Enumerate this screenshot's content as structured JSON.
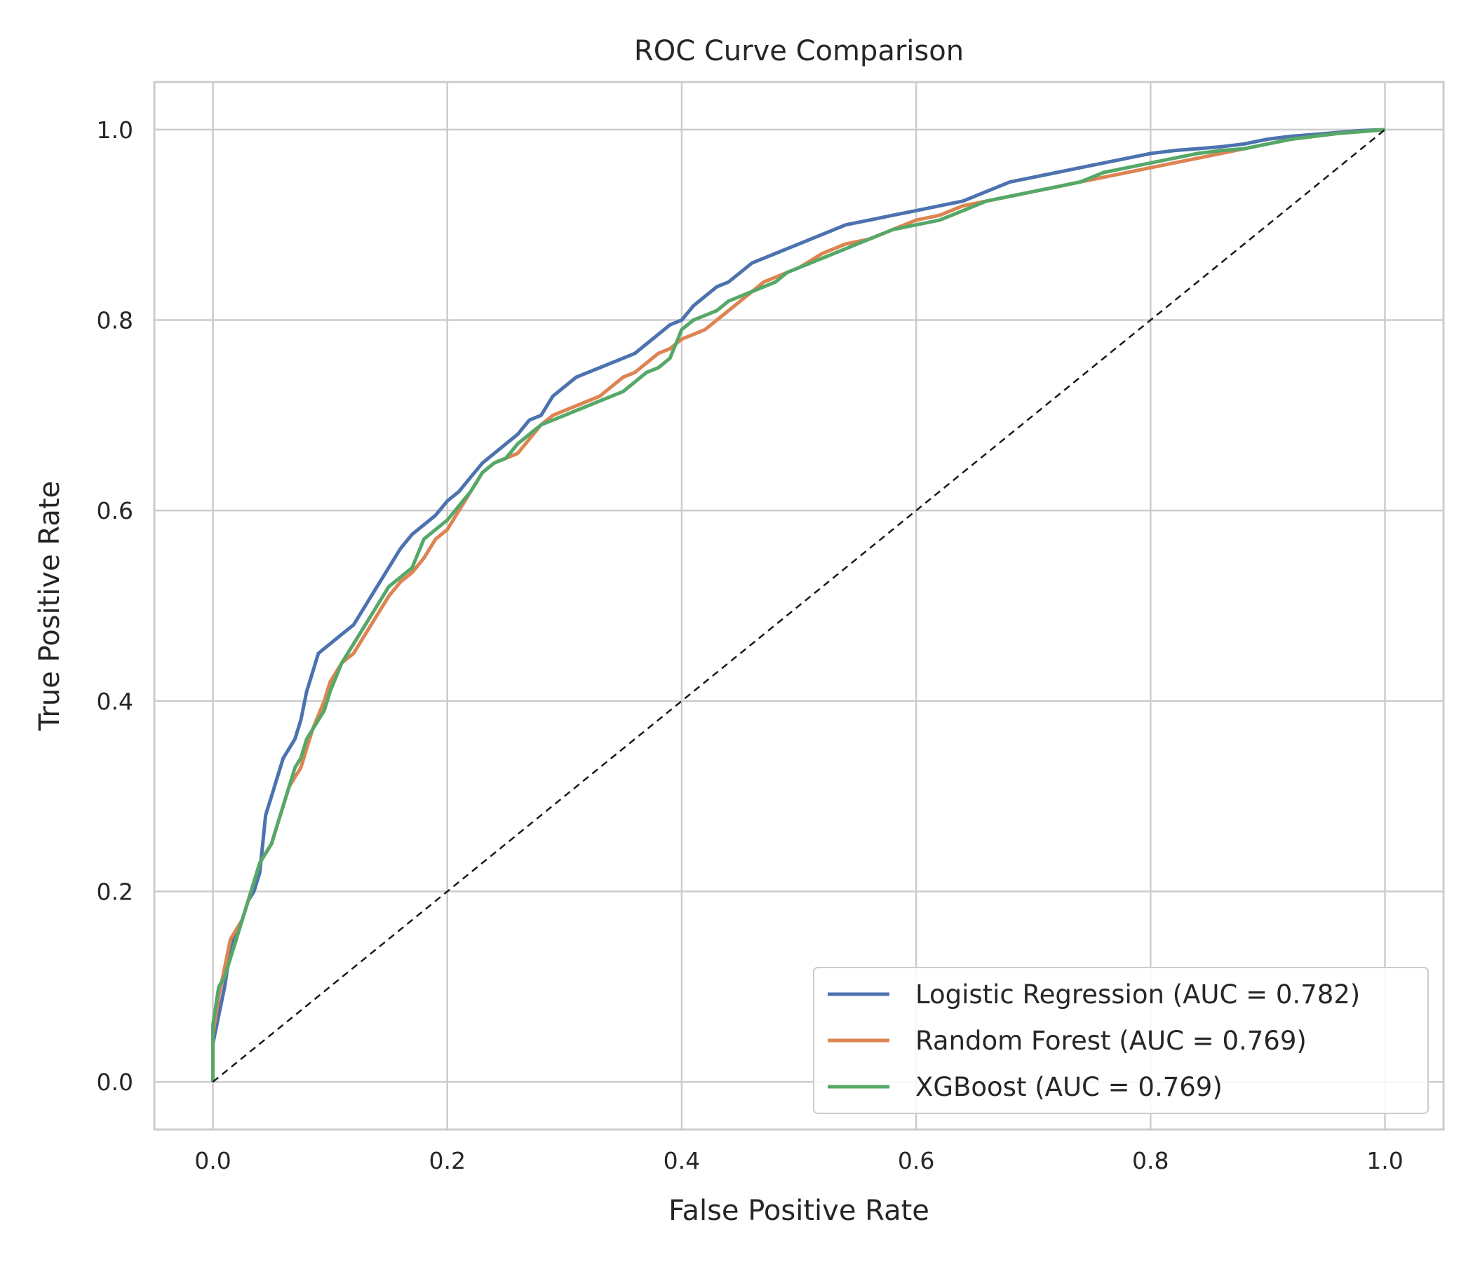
{
  "chart_data": {
    "type": "line",
    "title": "ROC Curve Comparison",
    "xlabel": "False Positive Rate",
    "ylabel": "True Positive Rate",
    "xlim": [
      -0.05,
      1.05
    ],
    "ylim": [
      -0.05,
      1.05
    ],
    "xticks": [
      "0.0",
      "0.2",
      "0.4",
      "0.6",
      "0.8",
      "1.0"
    ],
    "yticks": [
      "0.0",
      "0.2",
      "0.4",
      "0.6",
      "0.8",
      "1.0"
    ],
    "grid": true,
    "legend_position": "lower-right",
    "series": [
      {
        "name": "Logistic Regression (AUC = 0.782)",
        "color": "#4c72b0",
        "x": [
          0,
          0,
          0.005,
          0.01,
          0.015,
          0.02,
          0.025,
          0.03,
          0.035,
          0.04,
          0.045,
          0.05,
          0.055,
          0.06,
          0.065,
          0.07,
          0.075,
          0.08,
          0.085,
          0.09,
          0.095,
          0.1,
          0.11,
          0.12,
          0.13,
          0.14,
          0.15,
          0.16,
          0.17,
          0.18,
          0.19,
          0.2,
          0.21,
          0.22,
          0.23,
          0.24,
          0.25,
          0.26,
          0.27,
          0.28,
          0.29,
          0.3,
          0.31,
          0.32,
          0.33,
          0.34,
          0.35,
          0.36,
          0.37,
          0.38,
          0.39,
          0.4,
          0.41,
          0.42,
          0.43,
          0.44,
          0.45,
          0.46,
          0.47,
          0.48,
          0.49,
          0.5,
          0.52,
          0.54,
          0.56,
          0.58,
          0.6,
          0.62,
          0.64,
          0.66,
          0.68,
          0.7,
          0.72,
          0.74,
          0.76,
          0.78,
          0.8,
          0.82,
          0.84,
          0.86,
          0.88,
          0.9,
          0.92,
          0.94,
          0.96,
          0.98,
          1.0
        ],
        "y": [
          0,
          0.04,
          0.07,
          0.1,
          0.14,
          0.16,
          0.17,
          0.19,
          0.2,
          0.22,
          0.28,
          0.3,
          0.32,
          0.34,
          0.35,
          0.36,
          0.38,
          0.41,
          0.43,
          0.45,
          0.455,
          0.46,
          0.47,
          0.48,
          0.5,
          0.52,
          0.54,
          0.56,
          0.575,
          0.585,
          0.595,
          0.61,
          0.62,
          0.635,
          0.65,
          0.66,
          0.67,
          0.68,
          0.695,
          0.7,
          0.72,
          0.73,
          0.74,
          0.745,
          0.75,
          0.755,
          0.76,
          0.765,
          0.775,
          0.785,
          0.795,
          0.8,
          0.815,
          0.825,
          0.835,
          0.84,
          0.85,
          0.86,
          0.865,
          0.87,
          0.875,
          0.88,
          0.89,
          0.9,
          0.905,
          0.91,
          0.915,
          0.92,
          0.925,
          0.935,
          0.945,
          0.95,
          0.955,
          0.96,
          0.965,
          0.97,
          0.975,
          0.978,
          0.98,
          0.982,
          0.985,
          0.99,
          0.993,
          0.995,
          0.997,
          0.999,
          1.0
        ]
      },
      {
        "name": "Random Forest (AUC = 0.769)",
        "color": "#dd8452",
        "x": [
          0,
          0,
          0.005,
          0.01,
          0.015,
          0.02,
          0.025,
          0.03,
          0.035,
          0.04,
          0.045,
          0.05,
          0.055,
          0.06,
          0.065,
          0.07,
          0.075,
          0.08,
          0.085,
          0.09,
          0.095,
          0.1,
          0.11,
          0.12,
          0.13,
          0.14,
          0.15,
          0.16,
          0.17,
          0.18,
          0.19,
          0.2,
          0.21,
          0.22,
          0.23,
          0.24,
          0.25,
          0.26,
          0.27,
          0.28,
          0.29,
          0.3,
          0.31,
          0.32,
          0.33,
          0.34,
          0.35,
          0.36,
          0.37,
          0.38,
          0.39,
          0.4,
          0.41,
          0.42,
          0.43,
          0.44,
          0.45,
          0.46,
          0.47,
          0.48,
          0.49,
          0.5,
          0.52,
          0.54,
          0.56,
          0.58,
          0.6,
          0.62,
          0.64,
          0.66,
          0.68,
          0.7,
          0.72,
          0.74,
          0.76,
          0.78,
          0.8,
          0.82,
          0.84,
          0.86,
          0.88,
          0.9,
          0.92,
          0.94,
          0.96,
          0.98,
          1.0
        ],
        "y": [
          0,
          0.05,
          0.09,
          0.12,
          0.15,
          0.16,
          0.17,
          0.19,
          0.21,
          0.23,
          0.24,
          0.25,
          0.27,
          0.29,
          0.31,
          0.32,
          0.33,
          0.35,
          0.37,
          0.385,
          0.4,
          0.42,
          0.44,
          0.45,
          0.47,
          0.49,
          0.51,
          0.525,
          0.535,
          0.55,
          0.57,
          0.58,
          0.6,
          0.62,
          0.64,
          0.65,
          0.655,
          0.66,
          0.675,
          0.69,
          0.7,
          0.705,
          0.71,
          0.715,
          0.72,
          0.73,
          0.74,
          0.745,
          0.755,
          0.765,
          0.77,
          0.78,
          0.785,
          0.79,
          0.8,
          0.81,
          0.82,
          0.83,
          0.84,
          0.845,
          0.85,
          0.855,
          0.87,
          0.88,
          0.885,
          0.895,
          0.905,
          0.91,
          0.92,
          0.925,
          0.93,
          0.935,
          0.94,
          0.945,
          0.95,
          0.955,
          0.96,
          0.965,
          0.97,
          0.975,
          0.98,
          0.985,
          0.99,
          0.993,
          0.996,
          0.998,
          1.0
        ]
      },
      {
        "name": "XGBoost (AUC = 0.769)",
        "color": "#55a868",
        "x": [
          0,
          0,
          0.005,
          0.01,
          0.015,
          0.02,
          0.025,
          0.03,
          0.035,
          0.04,
          0.045,
          0.05,
          0.055,
          0.06,
          0.065,
          0.07,
          0.075,
          0.08,
          0.085,
          0.09,
          0.095,
          0.1,
          0.11,
          0.12,
          0.13,
          0.14,
          0.15,
          0.16,
          0.17,
          0.18,
          0.19,
          0.2,
          0.21,
          0.22,
          0.23,
          0.24,
          0.25,
          0.26,
          0.27,
          0.28,
          0.29,
          0.3,
          0.31,
          0.32,
          0.33,
          0.34,
          0.35,
          0.36,
          0.37,
          0.38,
          0.39,
          0.4,
          0.41,
          0.42,
          0.43,
          0.44,
          0.45,
          0.46,
          0.47,
          0.48,
          0.49,
          0.5,
          0.52,
          0.54,
          0.56,
          0.58,
          0.6,
          0.62,
          0.64,
          0.66,
          0.68,
          0.7,
          0.72,
          0.74,
          0.76,
          0.78,
          0.8,
          0.82,
          0.84,
          0.86,
          0.88,
          0.9,
          0.92,
          0.94,
          0.96,
          0.98,
          1.0
        ],
        "y": [
          0,
          0.06,
          0.1,
          0.11,
          0.13,
          0.15,
          0.17,
          0.19,
          0.21,
          0.23,
          0.24,
          0.25,
          0.27,
          0.29,
          0.31,
          0.33,
          0.34,
          0.36,
          0.37,
          0.38,
          0.39,
          0.41,
          0.44,
          0.46,
          0.48,
          0.5,
          0.52,
          0.53,
          0.54,
          0.57,
          0.58,
          0.59,
          0.605,
          0.62,
          0.64,
          0.65,
          0.655,
          0.67,
          0.68,
          0.69,
          0.695,
          0.7,
          0.705,
          0.71,
          0.715,
          0.72,
          0.725,
          0.735,
          0.745,
          0.75,
          0.76,
          0.79,
          0.8,
          0.805,
          0.81,
          0.82,
          0.825,
          0.83,
          0.835,
          0.84,
          0.85,
          0.855,
          0.865,
          0.875,
          0.885,
          0.895,
          0.9,
          0.905,
          0.915,
          0.925,
          0.93,
          0.935,
          0.94,
          0.945,
          0.955,
          0.96,
          0.965,
          0.97,
          0.975,
          0.978,
          0.98,
          0.985,
          0.99,
          0.993,
          0.996,
          0.998,
          1.0
        ]
      },
      {
        "name": "",
        "color": "#1a1a1a",
        "dashed": true,
        "x": [
          0,
          1
        ],
        "y": [
          0,
          1
        ]
      }
    ]
  }
}
